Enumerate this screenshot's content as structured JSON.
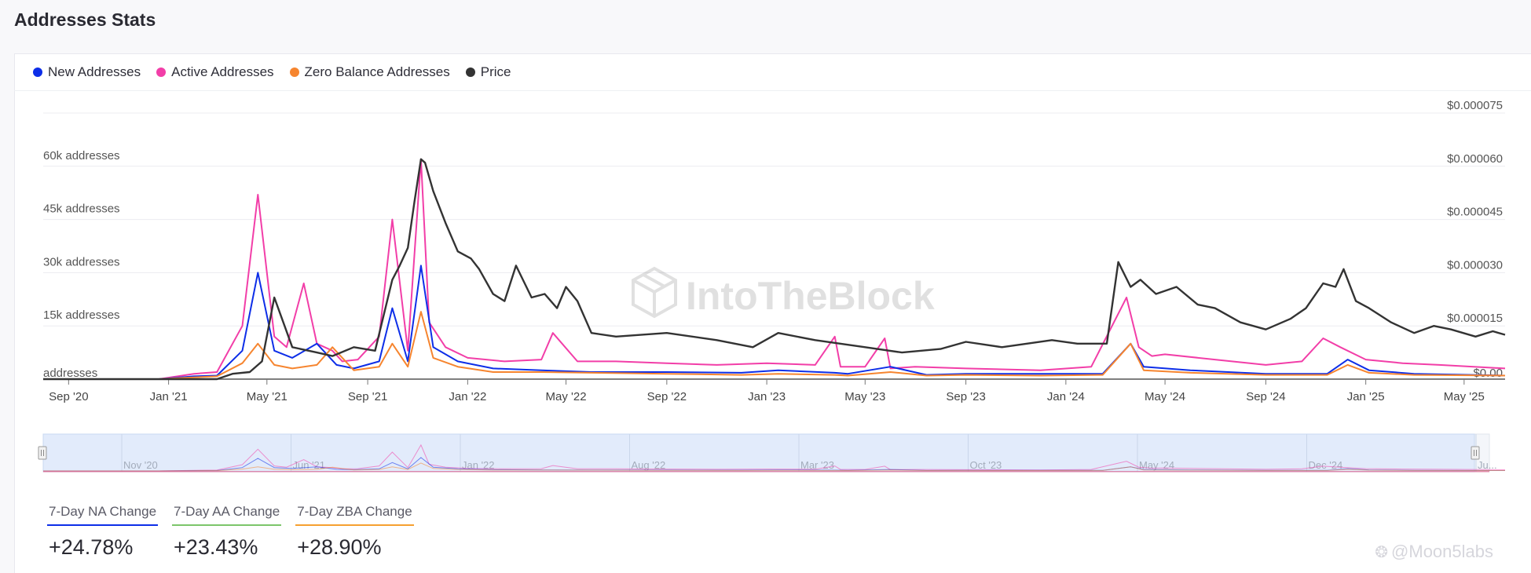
{
  "header": {
    "title": "Addresses Stats"
  },
  "legend": [
    {
      "label": "New Addresses",
      "color": "#0d2ee8"
    },
    {
      "label": "Active Addresses",
      "color": "#f23ea8"
    },
    {
      "label": "Zero Balance Addresses",
      "color": "#f6852f"
    },
    {
      "label": "Price",
      "color": "#333333"
    }
  ],
  "watermark": "IntoTheBlock",
  "credit": "@Moon5labs",
  "stats": [
    {
      "label": "7-Day NA Change",
      "value": "+24.78%",
      "color": "#0d2ee8"
    },
    {
      "label": "7-Day AA Change",
      "value": "+23.43%",
      "color": "#7cc56a"
    },
    {
      "label": "7-Day ZBA Change",
      "value": "+28.90%",
      "color": "#f6a030"
    }
  ],
  "navigator": {
    "labels": [
      "Nov '20",
      "Jun '21",
      "Jan '22",
      "Aug '22",
      "Mar '23",
      "Oct '23",
      "May '24",
      "Dec '24",
      "Ju..."
    ]
  },
  "chart_data": {
    "type": "line",
    "x_ticks": [
      "Sep '20",
      "Jan '21",
      "May '21",
      "Sep '21",
      "Jan '22",
      "May '22",
      "Sep '22",
      "Jan '23",
      "May '23",
      "Sep '23",
      "Jan '24",
      "May '24",
      "Sep '24",
      "Jan '25",
      "May '25"
    ],
    "x_range": [
      "2020-08-01",
      "2025-06-20"
    ],
    "y_left": {
      "ticks": [
        "addresses",
        "15k addresses",
        "30k addresses",
        "45k addresses",
        "60k addresses"
      ],
      "values": [
        0,
        15000,
        30000,
        45000,
        60000
      ],
      "range": [
        0,
        75000
      ]
    },
    "y_right": {
      "ticks": [
        "$0.00",
        "$0.000015",
        "$0.000030",
        "$0.000045",
        "$0.000060",
        "$0.000075"
      ],
      "values": [
        0,
        1.5e-05,
        3e-05,
        4.5e-05,
        6e-05,
        7.5e-05
      ],
      "range": [
        0,
        7.5e-05
      ]
    },
    "grid": true,
    "legend_position": "top-left",
    "series": [
      {
        "name": "Active Addresses",
        "axis": "left",
        "color": "#f23ea8",
        "x": [
          "2020-08-01",
          "2020-12-20",
          "2021-02-01",
          "2021-03-01",
          "2021-04-01",
          "2021-04-20",
          "2021-05-10",
          "2021-05-25",
          "2021-06-15",
          "2021-07-01",
          "2021-07-20",
          "2021-08-01",
          "2021-08-20",
          "2021-09-15",
          "2021-10-01",
          "2021-10-20",
          "2021-11-05",
          "2021-11-15",
          "2021-12-05",
          "2022-01-01",
          "2022-02-15",
          "2022-04-01",
          "2022-04-15",
          "2022-05-15",
          "2022-07-01",
          "2022-09-01",
          "2022-11-01",
          "2023-01-01",
          "2023-03-01",
          "2023-03-25",
          "2023-04-01",
          "2023-05-01",
          "2023-05-25",
          "2023-06-01",
          "2023-07-01",
          "2023-09-01",
          "2023-12-01",
          "2024-02-01",
          "2024-03-15",
          "2024-03-30",
          "2024-04-15",
          "2024-05-01",
          "2024-07-01",
          "2024-09-01",
          "2024-10-15",
          "2024-11-10",
          "2024-12-01",
          "2025-01-01",
          "2025-02-15",
          "2025-04-01",
          "2025-06-20"
        ],
        "y": [
          0,
          0,
          1500,
          2000,
          15000,
          52000,
          12000,
          9000,
          27000,
          10000,
          8000,
          5000,
          5500,
          12000,
          45000,
          8000,
          62000,
          16000,
          9000,
          6000,
          5000,
          5500,
          13000,
          5000,
          5000,
          4500,
          4000,
          4500,
          4000,
          12000,
          3500,
          3500,
          11500,
          3000,
          3500,
          3000,
          2500,
          3500,
          23000,
          9000,
          6500,
          7000,
          5500,
          4000,
          5000,
          11500,
          9000,
          5500,
          4500,
          4000,
          3000
        ]
      },
      {
        "name": "New Addresses",
        "axis": "left",
        "color": "#0d2ee8",
        "x": [
          "2020-08-01",
          "2020-12-20",
          "2021-02-01",
          "2021-03-01",
          "2021-04-01",
          "2021-04-20",
          "2021-05-10",
          "2021-06-01",
          "2021-07-01",
          "2021-07-25",
          "2021-08-15",
          "2021-09-15",
          "2021-10-01",
          "2021-10-20",
          "2021-11-05",
          "2021-11-20",
          "2021-12-20",
          "2022-02-01",
          "2022-04-01",
          "2022-06-01",
          "2022-09-01",
          "2022-12-01",
          "2023-01-15",
          "2023-03-25",
          "2023-04-10",
          "2023-06-01",
          "2023-07-15",
          "2023-09-01",
          "2023-12-01",
          "2024-02-15",
          "2024-03-20",
          "2024-04-05",
          "2024-06-01",
          "2024-09-01",
          "2024-11-15",
          "2024-12-10",
          "2025-01-05",
          "2025-03-01",
          "2025-06-20"
        ],
        "y": [
          0,
          0,
          800,
          1000,
          8000,
          30000,
          8000,
          6000,
          10000,
          4000,
          3000,
          5000,
          20000,
          5000,
          32000,
          9000,
          5000,
          3000,
          2500,
          2000,
          2000,
          1800,
          2500,
          1800,
          1500,
          3500,
          1200,
          1500,
          1500,
          1500,
          10000,
          3500,
          2500,
          1500,
          1500,
          5500,
          2500,
          1500,
          1000
        ]
      },
      {
        "name": "Zero Balance Addresses",
        "axis": "left",
        "color": "#f6852f",
        "x": [
          "2020-08-01",
          "2020-12-20",
          "2021-02-01",
          "2021-03-01",
          "2021-04-01",
          "2021-04-20",
          "2021-05-10",
          "2021-06-01",
          "2021-07-01",
          "2021-07-20",
          "2021-08-15",
          "2021-09-15",
          "2021-10-01",
          "2021-10-20",
          "2021-11-05",
          "2021-11-20",
          "2021-12-20",
          "2022-02-01",
          "2022-04-01",
          "2022-06-01",
          "2022-09-01",
          "2022-12-01",
          "2023-01-15",
          "2023-03-25",
          "2023-04-10",
          "2023-06-01",
          "2023-07-15",
          "2023-09-01",
          "2023-12-01",
          "2024-02-15",
          "2024-03-20",
          "2024-04-05",
          "2024-06-01",
          "2024-09-01",
          "2024-11-15",
          "2024-12-10",
          "2025-01-05",
          "2025-03-01",
          "2025-06-20"
        ],
        "y": [
          0,
          0,
          500,
          800,
          4500,
          10000,
          4000,
          3000,
          4000,
          9000,
          2500,
          3500,
          10000,
          3500,
          19000,
          6000,
          3500,
          2000,
          2000,
          1800,
          1500,
          1200,
          1500,
          1200,
          1000,
          2000,
          1000,
          1200,
          1000,
          1200,
          10000,
          2500,
          1800,
          1200,
          1200,
          4000,
          1800,
          1200,
          1000
        ]
      },
      {
        "name": "Price",
        "axis": "right",
        "color": "#333333",
        "x": [
          "2020-08-01",
          "2021-03-01",
          "2021-03-20",
          "2021-04-10",
          "2021-04-25",
          "2021-05-10",
          "2021-06-01",
          "2021-07-01",
          "2021-07-20",
          "2021-08-15",
          "2021-09-10",
          "2021-10-01",
          "2021-10-10",
          "2021-10-20",
          "2021-10-28",
          "2021-11-05",
          "2021-11-10",
          "2021-11-20",
          "2021-12-05",
          "2021-12-20",
          "2022-01-05",
          "2022-01-15",
          "2022-02-01",
          "2022-02-15",
          "2022-03-01",
          "2022-03-20",
          "2022-04-05",
          "2022-04-20",
          "2022-05-01",
          "2022-05-15",
          "2022-06-01",
          "2022-07-01",
          "2022-09-01",
          "2022-11-01",
          "2022-12-15",
          "2023-01-15",
          "2023-03-01",
          "2023-05-01",
          "2023-06-15",
          "2023-08-01",
          "2023-09-01",
          "2023-10-15",
          "2023-12-15",
          "2024-01-15",
          "2024-02-20",
          "2024-03-05",
          "2024-03-20",
          "2024-04-01",
          "2024-04-20",
          "2024-05-15",
          "2024-06-10",
          "2024-07-01",
          "2024-08-01",
          "2024-09-01",
          "2024-10-01",
          "2024-10-20",
          "2024-11-10",
          "2024-11-25",
          "2024-12-05",
          "2024-12-20",
          "2025-01-05",
          "2025-02-01",
          "2025-03-01",
          "2025-03-25",
          "2025-04-15",
          "2025-05-15",
          "2025-06-05",
          "2025-06-20"
        ],
        "y": [
          0,
          0,
          1.5e-06,
          2e-06,
          5e-06,
          2.3e-05,
          9e-06,
          7.5e-06,
          6.5e-06,
          9e-06,
          8e-06,
          2.8e-05,
          3.2e-05,
          3.7e-05,
          5e-05,
          6.2e-05,
          6.1e-05,
          5.3e-05,
          4.4e-05,
          3.6e-05,
          3.4e-05,
          3.1e-05,
          2.4e-05,
          2.2e-05,
          3.2e-05,
          2.3e-05,
          2.4e-05,
          2e-05,
          2.6e-05,
          2.2e-05,
          1.3e-05,
          1.2e-05,
          1.3e-05,
          1.1e-05,
          9e-06,
          1.3e-05,
          1.1e-05,
          9e-06,
          7.5e-06,
          8.5e-06,
          1.05e-05,
          9e-06,
          1.1e-05,
          1e-05,
          1e-05,
          3.3e-05,
          2.6e-05,
          2.8e-05,
          2.4e-05,
          2.6e-05,
          2.1e-05,
          2e-05,
          1.6e-05,
          1.4e-05,
          1.7e-05,
          2e-05,
          2.7e-05,
          2.6e-05,
          3.1e-05,
          2.2e-05,
          2e-05,
          1.6e-05,
          1.3e-05,
          1.5e-05,
          1.4e-05,
          1.2e-05,
          1.35e-05,
          1.25e-05
        ]
      }
    ]
  }
}
